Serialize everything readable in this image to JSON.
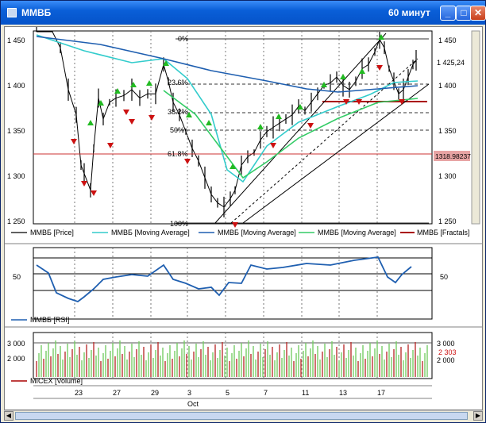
{
  "window": {
    "title": "ММВБ",
    "timeframe": "60 минут",
    "buttons": {
      "minimize": "_",
      "maximize": "□",
      "close": "✕"
    }
  },
  "price_panel": {
    "y_ticks": [
      "1 450",
      "1 400",
      "1 350",
      "1 300",
      "1 250"
    ],
    "last_price": "1 425,24",
    "marker_price": "1318.98237",
    "fib_labels": [
      "0%",
      "23.6%",
      "38.2%",
      "50%",
      "61.8%",
      "100%"
    ],
    "legend": [
      {
        "label": "ММВБ [Price]",
        "color": "#000000"
      },
      {
        "label": "ММВБ [Moving Average]",
        "color": "#33cccc"
      },
      {
        "label": "ММВБ [Moving Average]",
        "color": "#1f5fb0"
      },
      {
        "label": "ММВБ [Moving Average]",
        "color": "#33cc66"
      },
      {
        "label": "ММВБ [Fractals]",
        "color": "#aa0000"
      }
    ]
  },
  "rsi_panel": {
    "level_label": "50",
    "legend": "ММВБ [RSI]"
  },
  "volume_panel": {
    "y_ticks": [
      "3 000",
      "2 000"
    ],
    "right_ticks": [
      "3 000",
      "2 000"
    ],
    "last_value": "2 303",
    "legend": "MICEX [Volume]"
  },
  "x_axis": {
    "day_labels": [
      "23",
      "27",
      "29",
      "3",
      "5",
      "7",
      "11",
      "13",
      "17"
    ],
    "month_label": "Oct"
  },
  "colors": {
    "price": "#000000",
    "ma_cyan": "#33cccc",
    "ma_blue": "#1f5fb0",
    "ma_green": "#33cc66",
    "fractal_up": "#22bb22",
    "fractal_down": "#cc1111",
    "rsi": "#1f5fb0",
    "volume_up": "#77cc66",
    "volume_down": "#bb3333"
  }
}
